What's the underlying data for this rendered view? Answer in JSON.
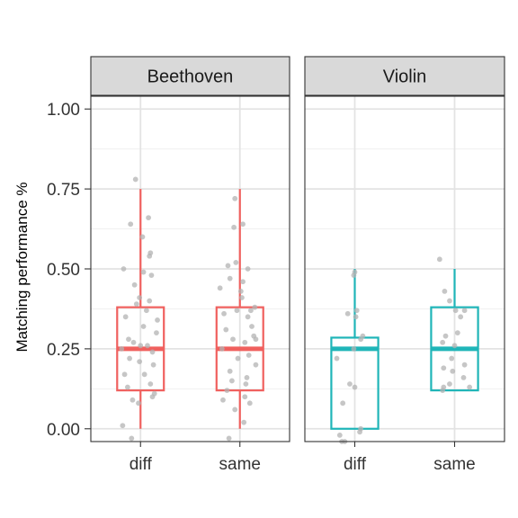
{
  "chart_data": {
    "type": "box",
    "ylabel": "Matching performance %",
    "ylim": [
      -0.04,
      1.04
    ],
    "y_ticks": [
      0.0,
      0.25,
      0.5,
      0.75,
      1.0
    ],
    "y_tick_labels": [
      "0.00",
      "0.25",
      "0.50",
      "0.75",
      "1.00"
    ],
    "categories": [
      "diff",
      "same"
    ],
    "grid": true,
    "colors": {
      "Beethoven": "#F0605E",
      "Violin": "#1FB5B8",
      "points": "#b3b3b3"
    },
    "panels": [
      {
        "label": "Beethoven",
        "color": "#F0605E",
        "boxes": [
          {
            "category": "diff",
            "stats": {
              "lower_whisker": 0.0,
              "q1": 0.12,
              "median": 0.25,
              "q3": 0.38,
              "upper_whisker": 0.75
            },
            "points": [
              [
                -0.05,
                0.78
              ],
              [
                0.08,
                0.66
              ],
              [
                -0.1,
                0.64
              ],
              [
                0.02,
                0.6
              ],
              [
                0.1,
                0.55
              ],
              [
                0.09,
                0.54
              ],
              [
                0.11,
                0.48
              ],
              [
                -0.17,
                0.5
              ],
              [
                0.03,
                0.49
              ],
              [
                -0.06,
                0.45
              ],
              [
                -0.01,
                0.41
              ],
              [
                0.09,
                0.4
              ],
              [
                -0.04,
                0.39
              ],
              [
                0.06,
                0.37
              ],
              [
                -0.15,
                0.35
              ],
              [
                0.17,
                0.34
              ],
              [
                0.03,
                0.32
              ],
              [
                0.16,
                0.3
              ],
              [
                -0.12,
                0.28
              ],
              [
                -0.07,
                0.27
              ],
              [
                0.0,
                0.26
              ],
              [
                0.07,
                0.26
              ],
              [
                -0.19,
                0.25
              ],
              [
                0.12,
                0.24
              ],
              [
                -0.11,
                0.22
              ],
              [
                -0.01,
                0.21
              ],
              [
                0.13,
                0.2
              ],
              [
                0.04,
                0.17
              ],
              [
                -0.16,
                0.17
              ],
              [
                0.1,
                0.14
              ],
              [
                -0.13,
                0.13
              ],
              [
                0.14,
                0.11
              ],
              [
                0.12,
                0.1
              ],
              [
                -0.08,
                0.09
              ],
              [
                -0.02,
                0.08
              ],
              [
                -0.18,
                0.01
              ],
              [
                -0.09,
                -0.03
              ]
            ]
          },
          {
            "category": "same",
            "stats": {
              "lower_whisker": 0.0,
              "q1": 0.12,
              "median": 0.25,
              "q3": 0.38,
              "upper_whisker": 0.75
            },
            "points": [
              [
                -0.05,
                0.72
              ],
              [
                -0.06,
                0.63
              ],
              [
                0.03,
                0.64
              ],
              [
                -0.04,
                0.52
              ],
              [
                -0.12,
                0.51
              ],
              [
                0.08,
                0.5
              ],
              [
                -0.1,
                0.47
              ],
              [
                0.03,
                0.46
              ],
              [
                -0.2,
                0.44
              ],
              [
                0.01,
                0.43
              ],
              [
                0.02,
                0.41
              ],
              [
                0.15,
                0.38
              ],
              [
                0.11,
                0.37
              ],
              [
                -0.03,
                0.37
              ],
              [
                -0.16,
                0.36
              ],
              [
                0.08,
                0.35
              ],
              [
                0.12,
                0.32
              ],
              [
                -0.14,
                0.31
              ],
              [
                0.14,
                0.29
              ],
              [
                0.16,
                0.28
              ],
              [
                0.05,
                0.27
              ],
              [
                -0.07,
                0.28
              ],
              [
                -0.18,
                0.25
              ],
              [
                0.09,
                0.23
              ],
              [
                -0.02,
                0.22
              ],
              [
                0.16,
                0.2
              ],
              [
                -0.1,
                0.18
              ],
              [
                0.07,
                0.16
              ],
              [
                -0.08,
                0.15
              ],
              [
                0.06,
                0.14
              ],
              [
                -0.13,
                0.12
              ],
              [
                0.05,
                0.1
              ],
              [
                -0.17,
                0.09
              ],
              [
                0.1,
                0.08
              ],
              [
                -0.05,
                0.06
              ],
              [
                0.04,
                0.02
              ],
              [
                -0.11,
                -0.03
              ]
            ]
          }
        ]
      },
      {
        "label": "Violin",
        "color": "#1FB5B8",
        "boxes": [
          {
            "category": "diff",
            "stats": {
              "lower_whisker": 0.0,
              "q1": 0.0,
              "median": 0.25,
              "q3": 0.285,
              "upper_whisker": 0.5
            },
            "points": [
              [
                0.0,
                0.49
              ],
              [
                -0.01,
                0.48
              ],
              [
                0.02,
                0.37
              ],
              [
                0.01,
                0.35
              ],
              [
                -0.07,
                0.36
              ],
              [
                0.08,
                0.29
              ],
              [
                0.06,
                0.28
              ],
              [
                -0.01,
                0.25
              ],
              [
                -0.18,
                0.22
              ],
              [
                0.0,
                0.13
              ],
              [
                -0.05,
                0.14
              ],
              [
                -0.12,
                0.08
              ],
              [
                0.06,
                0.0
              ],
              [
                0.05,
                -0.01
              ],
              [
                -0.15,
                -0.02
              ],
              [
                -0.13,
                -0.04
              ],
              [
                -0.1,
                -0.04
              ]
            ]
          },
          {
            "category": "same",
            "stats": {
              "lower_whisker": 0.12,
              "q1": 0.12,
              "median": 0.25,
              "q3": 0.38,
              "upper_whisker": 0.5
            },
            "points": [
              [
                -0.15,
                0.53
              ],
              [
                -0.1,
                0.43
              ],
              [
                -0.05,
                0.4
              ],
              [
                0.01,
                0.37
              ],
              [
                0.1,
                0.37
              ],
              [
                0.06,
                0.35
              ],
              [
                0.03,
                0.3
              ],
              [
                -0.09,
                0.29
              ],
              [
                -0.12,
                0.27
              ],
              [
                0.0,
                0.26
              ],
              [
                -0.03,
                0.22
              ],
              [
                0.1,
                0.2
              ],
              [
                -0.11,
                0.19
              ],
              [
                -0.02,
                0.18
              ],
              [
                0.09,
                0.16
              ],
              [
                -0.05,
                0.14
              ],
              [
                0.15,
                0.13
              ],
              [
                -0.11,
                0.13
              ],
              [
                -0.12,
                0.12
              ]
            ]
          }
        ]
      }
    ]
  }
}
